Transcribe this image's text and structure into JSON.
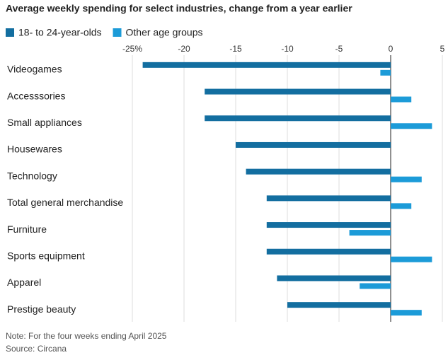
{
  "chart_data": {
    "type": "hbar",
    "title": "Average weekly spending for select industries, change from a year earlier",
    "categories": [
      "Videogames",
      "Accesssories",
      "Small appliances",
      "Housewares",
      "Technology",
      "Total general merchandise",
      "Furniture",
      "Sports equipment",
      "Apparel",
      "Prestige beauty"
    ],
    "series": [
      {
        "name": "18- to 24-year-olds",
        "color": "#136ea0",
        "values": [
          -24,
          -18,
          -18,
          -15,
          -14,
          -12,
          -12,
          -12,
          -11,
          -10
        ]
      },
      {
        "name": "Other age groups",
        "color": "#1c9bd8",
        "values": [
          -1,
          2,
          4,
          0,
          3,
          2,
          -4,
          4,
          -3,
          3
        ]
      }
    ],
    "xlim": [
      -25,
      5
    ],
    "xticks": [
      {
        "value": -25,
        "label": "-25%"
      },
      -20,
      -15,
      -10,
      -5,
      0,
      5
    ],
    "grid": true,
    "note": "Note: For the four weeks ending April 2025",
    "source": "Source: Circana"
  }
}
